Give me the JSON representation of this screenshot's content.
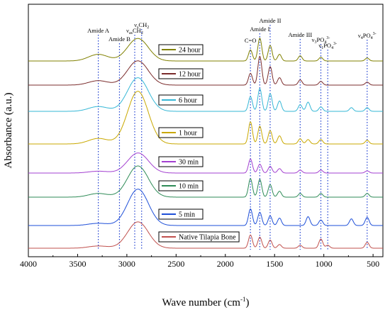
{
  "chart_data": {
    "type": "line",
    "title": "",
    "xlabel": "Wave number (cm",
    "xlabel_exp": "-1",
    "xlabel_end": ")",
    "ylabel": "Absorbance (a.u.)",
    "xlim": [
      4000,
      400
    ],
    "x_reversed": true,
    "xticks": [
      "4000",
      "3500",
      "3000",
      "2500",
      "2000",
      "1500",
      "1000",
      "500"
    ],
    "xtick_values": [
      4000,
      3500,
      3000,
      2500,
      2000,
      1500,
      1000,
      500
    ],
    "grid": false,
    "legend_placement": "per-series box left of center",
    "band_lines": [
      {
        "x": 3290,
        "label": "Amide A"
      },
      {
        "x": 3075,
        "label": "Amide B"
      },
      {
        "x": 2920,
        "label": "νasCH2"
      },
      {
        "x": 2850,
        "label": "νsCH2"
      },
      {
        "x": 1745,
        "label": "C=O"
      },
      {
        "x": 1650,
        "label": "Amide I"
      },
      {
        "x": 1545,
        "label": "Amide II"
      },
      {
        "x": 1240,
        "label": "Amide III"
      },
      {
        "x": 1030,
        "label": "ν3PO43-"
      },
      {
        "x": 960,
        "label": "ν1PO43-"
      },
      {
        "x": 560,
        "label": "ν4PO43-"
      }
    ],
    "series": [
      {
        "name": "24 hour",
        "color": "#808000",
        "peaks": [
          [
            3290,
            0.18
          ],
          [
            2920,
            0.35
          ],
          [
            2850,
            0.3
          ],
          [
            1745,
            0.3
          ],
          [
            1650,
            0.62
          ],
          [
            1545,
            0.42
          ],
          [
            1450,
            0.18
          ],
          [
            1240,
            0.14
          ],
          [
            1030,
            0.1
          ],
          [
            560,
            0.08
          ]
        ]
      },
      {
        "name": "12 hour",
        "color": "#7b2c2c",
        "peaks": [
          [
            3290,
            0.12
          ],
          [
            2920,
            0.38
          ],
          [
            2850,
            0.32
          ],
          [
            1745,
            0.32
          ],
          [
            1650,
            0.78
          ],
          [
            1545,
            0.5
          ],
          [
            1450,
            0.2
          ],
          [
            1240,
            0.14
          ],
          [
            1030,
            0.1
          ],
          [
            560,
            0.08
          ]
        ]
      },
      {
        "name": "6 hour",
        "color": "#35b7d6",
        "peaks": [
          [
            3290,
            0.13
          ],
          [
            2920,
            0.52
          ],
          [
            2850,
            0.45
          ],
          [
            1745,
            0.4
          ],
          [
            1650,
            0.62
          ],
          [
            1545,
            0.48
          ],
          [
            1450,
            0.28
          ],
          [
            1240,
            0.18
          ],
          [
            1160,
            0.25
          ],
          [
            1030,
            0.12
          ],
          [
            720,
            0.1
          ],
          [
            560,
            0.1
          ]
        ]
      },
      {
        "name": "1 hour",
        "color": "#c9a800",
        "peaks": [
          [
            3290,
            0.15
          ],
          [
            2920,
            0.82
          ],
          [
            2850,
            0.7
          ],
          [
            1745,
            0.6
          ],
          [
            1650,
            0.48
          ],
          [
            1545,
            0.36
          ],
          [
            1450,
            0.22
          ],
          [
            1240,
            0.14
          ],
          [
            1160,
            0.12
          ],
          [
            1030,
            0.12
          ],
          [
            560,
            0.1
          ]
        ]
      },
      {
        "name": "30 min",
        "color": "#a340d0",
        "peaks": [
          [
            3290,
            0.05
          ],
          [
            2920,
            0.3
          ],
          [
            2850,
            0.28
          ],
          [
            1745,
            0.38
          ],
          [
            1650,
            0.24
          ],
          [
            1545,
            0.18
          ],
          [
            1450,
            0.12
          ],
          [
            1240,
            0.08
          ],
          [
            1030,
            0.08
          ],
          [
            560,
            0.06
          ]
        ]
      },
      {
        "name": "10 min",
        "color": "#2e8b57",
        "peaks": [
          [
            3290,
            0.1
          ],
          [
            2920,
            0.48
          ],
          [
            2850,
            0.42
          ],
          [
            1745,
            0.5
          ],
          [
            1650,
            0.48
          ],
          [
            1545,
            0.34
          ],
          [
            1450,
            0.16
          ],
          [
            1240,
            0.1
          ],
          [
            1030,
            0.1
          ],
          [
            560,
            0.1
          ]
        ]
      },
      {
        "name": "5 min",
        "color": "#1e4fd8",
        "peaks": [
          [
            3290,
            0.06
          ],
          [
            2920,
            0.55
          ],
          [
            2850,
            0.5
          ],
          [
            1745,
            0.45
          ],
          [
            1650,
            0.36
          ],
          [
            1545,
            0.26
          ],
          [
            1450,
            0.2
          ],
          [
            1160,
            0.24
          ],
          [
            1030,
            0.15
          ],
          [
            720,
            0.18
          ],
          [
            560,
            0.22
          ]
        ]
      },
      {
        "name": "Native Tilapia Bone",
        "color": "#c0504d",
        "peaks": [
          [
            3290,
            0.06
          ],
          [
            2920,
            0.4
          ],
          [
            2850,
            0.36
          ],
          [
            1745,
            0.36
          ],
          [
            1650,
            0.3
          ],
          [
            1545,
            0.22
          ],
          [
            1450,
            0.1
          ],
          [
            1240,
            0.08
          ],
          [
            1030,
            0.25
          ],
          [
            960,
            0.08
          ],
          [
            560,
            0.16
          ]
        ]
      }
    ]
  }
}
